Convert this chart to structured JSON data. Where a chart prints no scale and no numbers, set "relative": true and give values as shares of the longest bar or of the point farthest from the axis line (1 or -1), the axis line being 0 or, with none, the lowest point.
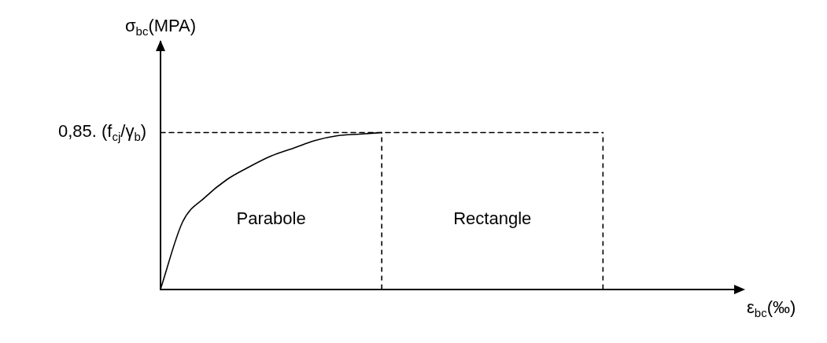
{
  "chart_data": {
    "type": "line",
    "relative": true,
    "xlabel": "ε$_{bc}$(‰)",
    "categories": [
      null,
      null,
      null,
      null,
      null,
      null,
      null,
      null,
      null,
      null,
      null,
      null,
      null,
      null,
      null,
      null,
      null,
      null,
      null,
      null,
      null,
      null,
      null,
      null,
      null,
      null,
      null
    ],
    "series": [
      {
        "color": "#000000",
        "line_style": "solid",
        "values": [
          0,
          0.43,
          0.585,
          0.7,
          0.78,
          0.85,
          0.9,
          0.95,
          0.98,
          0.99,
          1,
          null,
          null,
          null,
          null,
          null,
          null,
          null,
          null,
          null,
          null,
          null,
          null,
          null,
          null,
          null,
          null
        ]
      },
      {
        "color": "#000000",
        "line_style": "dashed",
        "values": [
          1,
          1,
          1,
          1,
          1,
          1,
          1,
          1,
          1,
          1,
          1,
          1,
          1,
          1,
          1,
          1,
          1,
          1,
          1,
          1,
          1,
          null,
          null,
          null,
          null,
          null,
          null
        ]
      }
    ],
    "annotations": [
      "σ$_{bc}$(MPA)",
      "0,85. (f$_{cj}$/γ$_{b}$)",
      "Parabole",
      "Rectangle"
    ],
    "legend": false,
    "grid": false
  }
}
